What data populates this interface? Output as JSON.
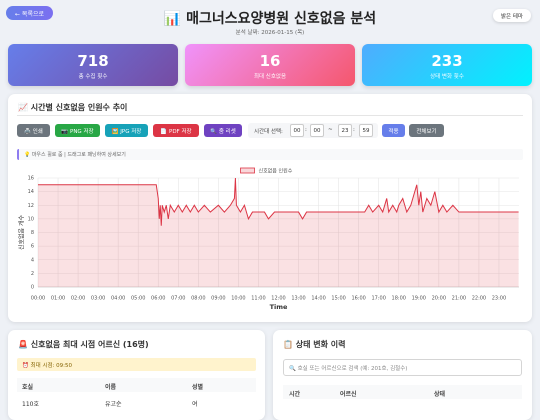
{
  "header": {
    "back": "← 목록으로",
    "title": "📊 매그너스요양병원 신호없음 분석",
    "date": "분석 날짜: 2026-01-15 (목)",
    "theme": "밝은 테마"
  },
  "stats": [
    {
      "value": 718,
      "label": "총 수집 횟수"
    },
    {
      "value": 16,
      "label": "최대 신호없음"
    },
    {
      "value": 233,
      "label": "상태 변화 횟수"
    }
  ],
  "chart_card": {
    "title": "📈 시간별 신호없음 인원수 추이",
    "buttons": [
      "🖨️ 인쇄",
      "📷 PNG 저장",
      "🖼️ JPG 저장",
      "📄 PDF 저장",
      "🔍 줌 리셋"
    ],
    "range_label": "시간대 선택:",
    "start_h": "00",
    "start_m": "00",
    "end_h": "23",
    "end_m": "59",
    "colon": ":",
    "tilde": "~",
    "apply": "적용",
    "show_all": "전체보기",
    "hint": "💡 마우스 휠로 줌 | 드래그로 패닝하여 상세보기"
  },
  "chart_data": {
    "type": "line",
    "x_label": "Time",
    "y_label": "신호없음 개수",
    "series": [
      {
        "name": "신호없음 인원수",
        "color": "#dc3545",
        "x": [
          0,
          5.9,
          6.0,
          6.05,
          6.1,
          6.15,
          6.2,
          6.3,
          6.4,
          6.5,
          6.6,
          6.8,
          7.0,
          7.2,
          7.4,
          7.6,
          7.8,
          8.0,
          8.3,
          8.6,
          9.0,
          9.3,
          9.6,
          9.8,
          9.85,
          9.9,
          10.1,
          10.3,
          10.5,
          10.7,
          11.0,
          11.3,
          11.5,
          11.8,
          12.0,
          12.5,
          13.0,
          13.2,
          13.4,
          14.0,
          14.5,
          15.0,
          15.5,
          16.0,
          16.3,
          16.5,
          16.7,
          17.0,
          17.2,
          17.4,
          17.5,
          17.7,
          17.9,
          18.0,
          18.2,
          18.4,
          18.6,
          18.8,
          18.9,
          19.0,
          19.1,
          19.2,
          19.4,
          19.6,
          19.8,
          20.0,
          20.2,
          20.4,
          20.7,
          21.0,
          22.0,
          23.98
        ],
        "values": [
          15,
          15,
          13,
          10,
          12,
          9,
          12,
          11,
          12,
          10,
          12,
          11,
          12,
          11,
          12,
          11,
          12,
          11,
          12,
          11,
          12,
          11,
          12,
          13,
          16,
          12,
          11,
          12,
          10,
          11,
          11,
          11,
          10,
          11,
          11,
          11,
          11,
          10,
          11,
          11,
          11,
          11,
          11,
          11,
          11,
          12,
          11,
          12,
          11,
          13,
          11,
          12,
          11,
          12,
          13,
          11,
          12,
          14,
          15,
          12,
          14,
          11,
          13,
          12,
          14,
          11,
          12,
          11,
          12,
          11,
          11,
          11
        ]
      }
    ],
    "xlim": [
      0,
      24
    ],
    "ylim": [
      0,
      16
    ],
    "xticks": [
      {
        "value": 0,
        "label": "00:00"
      },
      {
        "value": 1,
        "label": "01:00"
      },
      {
        "value": 2,
        "label": "02:00"
      },
      {
        "value": 3,
        "label": "03:00"
      },
      {
        "value": 4,
        "label": "04:00"
      },
      {
        "value": 5,
        "label": "05:00"
      },
      {
        "value": 6,
        "label": "06:00"
      },
      {
        "value": 7,
        "label": "07:00"
      },
      {
        "value": 8,
        "label": "08:00"
      },
      {
        "value": 9,
        "label": "09:00"
      },
      {
        "value": 10,
        "label": "10:00"
      },
      {
        "value": 11,
        "label": "11:00"
      },
      {
        "value": 12,
        "label": "12:00"
      },
      {
        "value": 13,
        "label": "13:00"
      },
      {
        "value": 14,
        "label": "14:00"
      },
      {
        "value": 15,
        "label": "15:00"
      },
      {
        "value": 16,
        "label": "16:00"
      },
      {
        "value": 17,
        "label": "17:00"
      },
      {
        "value": 18,
        "label": "18:00"
      },
      {
        "value": 19,
        "label": "19:00"
      },
      {
        "value": 20,
        "label": "20:00"
      },
      {
        "value": 21,
        "label": "21:00"
      },
      {
        "value": 22,
        "label": "22:00"
      },
      {
        "value": 23,
        "label": "23:00"
      }
    ],
    "yticks": [
      0,
      2,
      4,
      6,
      8,
      10,
      12,
      14,
      16
    ],
    "grid": true,
    "legend": "top"
  },
  "max_card": {
    "title": "🚨 신호없음 최대 시점 어르신 (16명)",
    "alert": "⏰ 최대 시점: 09:50",
    "headers": [
      "호실",
      "이름",
      "성별"
    ],
    "rows": [
      [
        "110호",
        "유고순",
        "여"
      ]
    ]
  },
  "history_card": {
    "title": "📋 상태 변화 이력",
    "search": "🔍 호실 또는 어르신으로 검색 (예: 201호, 김철수)",
    "headers": [
      "시간",
      "어르신",
      "상태"
    ]
  }
}
